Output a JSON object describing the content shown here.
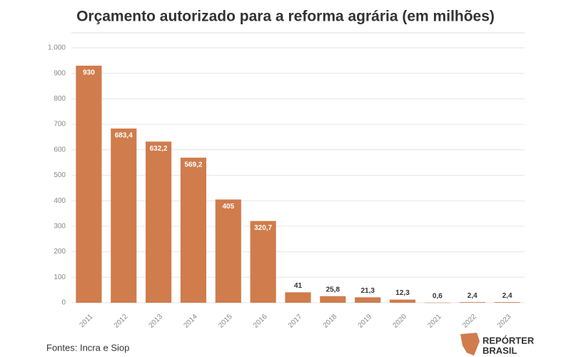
{
  "chart_data": {
    "type": "bar",
    "title": "Orçamento autorizado para a reforma agrária (em milhões)",
    "categories": [
      "2011",
      "2012",
      "2013",
      "2014",
      "2015",
      "2016",
      "2017",
      "2018",
      "2019",
      "2020",
      "2021",
      "2022",
      "2023"
    ],
    "values": [
      930,
      683.4,
      632.2,
      569.2,
      405,
      320.7,
      41,
      25.8,
      21.3,
      12.3,
      0.6,
      2.4,
      2.4
    ],
    "value_labels": [
      "930",
      "683,4",
      "632,2",
      "569,2",
      "405",
      "320,7",
      "41",
      "25,8",
      "21,3",
      "12,3",
      "0,6",
      "2,4",
      "2,4"
    ],
    "color": "#d07c4d",
    "ylim": [
      0,
      1000
    ],
    "yticks": [
      0,
      100,
      200,
      300,
      400,
      500,
      600,
      700,
      800,
      900,
      {
        "value": 1000,
        "label": "1.000"
      }
    ],
    "grid": true
  },
  "source": "Fontes: Incra e Siop",
  "logo": {
    "line1": "REPÓRTER",
    "line2": "BRASIL"
  }
}
